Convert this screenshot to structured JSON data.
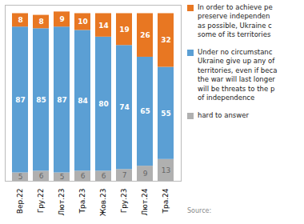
{
  "chart_data": {
    "type": "bar",
    "stacked": true,
    "categories": [
      "Вер.22",
      "Гру.22",
      "Лют.23",
      "Тра.23",
      "Жов.23",
      "Гру.23",
      "Лют.24",
      "Тра.24"
    ],
    "series": [
      {
        "name": "hard to answer",
        "color": "#B0B0B0",
        "values": [
          5,
          6,
          5,
          6,
          6,
          7,
          9,
          13
        ]
      },
      {
        "name": "Under no circumstanc\nUkraine give up any of\nterritories, even if beca\nthe war will last longer\nwill be threats to the p\nof independence",
        "color": "#5B9FD4",
        "values": [
          87,
          85,
          87,
          84,
          80,
          74,
          65,
          55
        ]
      },
      {
        "name": "In order to achieve pe\npreserve independen\nas possible, Ukraine c\nsome of its territories",
        "color": "#E87722",
        "values": [
          8,
          8,
          9,
          10,
          14,
          19,
          26,
          32
        ]
      }
    ],
    "ylim": [
      0,
      105
    ],
    "data_labels": true,
    "tick_labels": "x",
    "legend": "right",
    "annotations": [
      "Source:"
    ]
  }
}
